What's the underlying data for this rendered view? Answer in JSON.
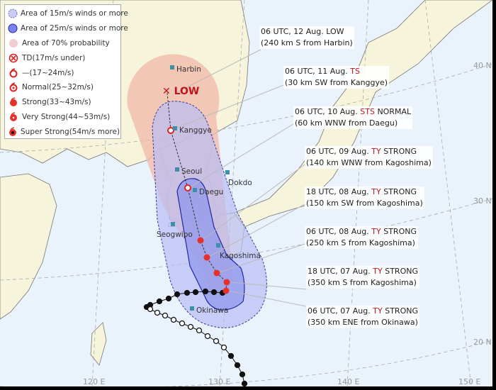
{
  "legend": {
    "items": [
      {
        "icon": "dashed-circle-light-blue-icon",
        "label": "Area of 15m/s winds or more"
      },
      {
        "icon": "circle-blue-icon",
        "label": "Area of 25m/s winds or more"
      },
      {
        "icon": "circle-pink-icon",
        "label": "Area of 70% probability"
      },
      {
        "icon": "td-cross-circle-icon",
        "label": "TD(17m/s under)"
      },
      {
        "icon": "typhoon-outline-icon",
        "label": "—(17~24m/s)"
      },
      {
        "icon": "typhoon-normal-icon",
        "label": "Normal(25~32m/s)"
      },
      {
        "icon": "typhoon-strong-icon",
        "label": "Strong(33~43m/s)"
      },
      {
        "icon": "typhoon-very-strong-icon",
        "label": "Very Strong(44~53m/s)"
      },
      {
        "icon": "typhoon-super-strong-icon",
        "label": "Super Strong(54m/s more)"
      }
    ]
  },
  "forecast_labels": [
    {
      "time": "06 UTC, 12 Aug.",
      "grade": "",
      "intensity": "LOW",
      "location": "(240 km S from Harbin)"
    },
    {
      "time": "06 UTC, 11 Aug.",
      "grade": "TS",
      "intensity": "",
      "location": "(30 km SW from Kanggye)"
    },
    {
      "time": "06 UTC, 10 Aug.",
      "grade": "STS",
      "intensity": "NORMAL",
      "location": "(60 km WNW from Daegu)"
    },
    {
      "time": "06 UTC, 09 Aug.",
      "grade": "TY",
      "intensity": "STRONG",
      "location": "(140 km WNW from Kagoshima)"
    },
    {
      "time": "18 UTC, 08 Aug.",
      "grade": "TY",
      "intensity": "STRONG",
      "location": "(150 km SW from Kagoshima)"
    },
    {
      "time": "06 UTC, 08 Aug.",
      "grade": "TY",
      "intensity": "STRONG",
      "location": "(250 km S from Kagoshima)"
    },
    {
      "time": "18 UTC, 07 Aug.",
      "grade": "TY",
      "intensity": "STRONG",
      "location": "(350 km S from Kagoshima)"
    },
    {
      "time": "06 UTC, 07 Aug.",
      "grade": "TY",
      "intensity": "STRONG",
      "location": "(350 km ENE from Okinawa)"
    }
  ],
  "low_marker": "LOW",
  "cities": [
    "Harbin",
    "Kanggye",
    "Seoul",
    "Dokdo",
    "Daegu",
    "Seogwipo",
    "Kagoshima",
    "Okinawa"
  ],
  "grid": {
    "lat": [
      "40 N",
      "30 N",
      "20 N"
    ],
    "lon": [
      "120 E",
      "130 E",
      "140 E",
      "150 E"
    ]
  },
  "colors": {
    "area15": "#c8ccf5",
    "area25": "#9aa0ee",
    "prob70": "#f2b8a8",
    "grade": "#c0141c",
    "land": "#f7f4dc",
    "sea": "#eaf2fb"
  }
}
